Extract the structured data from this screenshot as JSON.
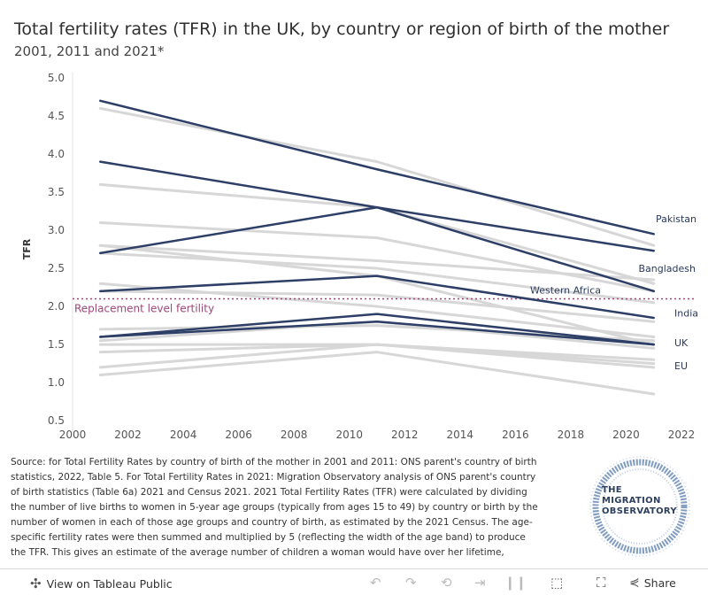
{
  "chart_data": {
    "type": "line",
    "title": "Total fertility rates (TFR) in the UK, by country or region of birth of the mother",
    "subtitle": "2001, 2011 and 2021*",
    "xlabel": "",
    "ylabel": "TFR",
    "xlim": [
      2000,
      2022
    ],
    "ylim": [
      0.5,
      5.0
    ],
    "x_ticks": [
      "2000",
      "2002",
      "2004",
      "2006",
      "2008",
      "2010",
      "2012",
      "2014",
      "2016",
      "2018",
      "2020",
      "2022"
    ],
    "y_ticks": [
      "0.5",
      "1.0",
      "1.5",
      "2.0",
      "2.5",
      "3.0",
      "3.5",
      "4.0",
      "4.5",
      "5.0"
    ],
    "x": [
      2001,
      2011,
      2021
    ],
    "reference_line": {
      "value": 2.1,
      "label": "Replacement level fertility"
    },
    "highlighted_series": [
      {
        "name": "Pakistan",
        "values": [
          4.7,
          3.8,
          2.95
        ],
        "label": "Pakistan"
      },
      {
        "name": "Bangladesh",
        "values": [
          3.9,
          3.3,
          2.73
        ],
        "label": "Bangladesh"
      },
      {
        "name": "Western Africa",
        "values": [
          2.7,
          3.3,
          2.2
        ],
        "label": "Western Africa"
      },
      {
        "name": "India",
        "values": [
          2.2,
          2.4,
          1.85
        ],
        "label": "India"
      },
      {
        "name": "UK",
        "values": [
          1.6,
          1.9,
          1.5
        ],
        "label": "UK"
      },
      {
        "name": "EU",
        "values": [
          1.6,
          1.8,
          1.5
        ],
        "label": "EU"
      }
    ],
    "other_series": [
      {
        "values": [
          4.6,
          3.9,
          2.8
        ]
      },
      {
        "values": [
          3.6,
          3.3,
          2.3
        ]
      },
      {
        "values": [
          3.1,
          2.9,
          2.2
        ]
      },
      {
        "values": [
          2.8,
          2.6,
          2.35
        ]
      },
      {
        "values": [
          2.8,
          2.4,
          1.5
        ]
      },
      {
        "values": [
          2.7,
          2.5,
          2.05
        ]
      },
      {
        "values": [
          2.3,
          2.0,
          1.6
        ]
      },
      {
        "values": [
          2.2,
          2.15,
          1.8
        ]
      },
      {
        "values": [
          1.7,
          1.75,
          1.55
        ]
      },
      {
        "values": [
          1.55,
          1.8,
          1.45
        ]
      },
      {
        "values": [
          1.4,
          1.5,
          1.3
        ]
      },
      {
        "values": [
          1.2,
          1.5,
          1.2
        ]
      },
      {
        "values": [
          1.1,
          1.4,
          0.85
        ]
      },
      {
        "values": [
          1.5,
          1.5,
          1.25
        ]
      }
    ]
  },
  "source_text": "Source: for Total Fertility Rates by country of birth of the mother in 2001 and 2011: ONS parent's country of birth statistics, 2022, Table 5. For Total Fertility Rates in 2021: Migration Observatory analysis of ONS parent's country of birth statistics (Table 6a) 2021 and Census 2021. 2021 Total Fertility Rates (TFR) were calculated by dividing the number of live births to women in 5-year age groups (typically from ages 15 to 49) by country or birth by the number of women in each of those age groups and country of birth, as estimated by the 2021 Census. The age-specific fertility rates were then summed and multiplied by 5 (reflecting the width of the age band) to produce the TFR. This gives an estimate of the average number of children a woman would have over her lifetime, assuming current age-specific fertility rates remain",
  "logo": {
    "text": "THE MIGRATION OBSERVATORY"
  },
  "footer": {
    "view_label": "View on Tableau Public",
    "share_label": "Share"
  },
  "colors": {
    "highlight": "#2d3f66",
    "other": "#d7d7d7",
    "reference": "#a0467a"
  },
  "icons": [
    "tableau-icon",
    "undo-icon",
    "redo-icon",
    "revert-icon",
    "pause-icon",
    "download-icon",
    "fullscreen-icon",
    "share-icon"
  ]
}
